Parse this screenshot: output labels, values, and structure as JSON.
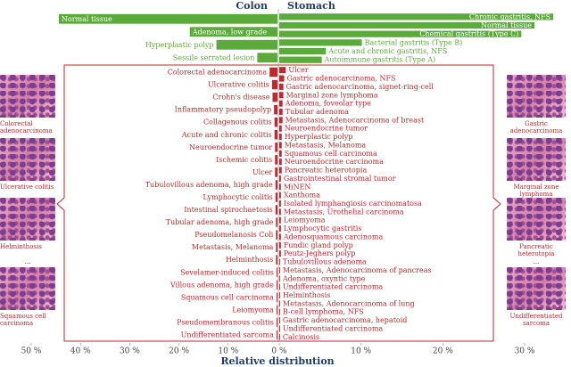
{
  "chart_data": {
    "type": "butterfly_bar",
    "xlabel": "Relative distribution",
    "sides": [
      {
        "title": "Colon",
        "xlim": [
          50,
          0
        ],
        "xticks": [
          {
            "value": 50,
            "label": "50 %"
          },
          {
            "value": 40,
            "label": "40 %"
          },
          {
            "value": 30,
            "label": "30 %"
          },
          {
            "value": 20,
            "label": "20 %"
          },
          {
            "value": 10,
            "label": "10 %"
          }
        ],
        "groups": [
          {
            "color": "#5bab3b",
            "categories": [
              "Normal tissue",
              "Adenoma, low grade",
              "Hyperplastic polyp",
              "Sessile serrated lesion"
            ],
            "values": [
              44.4,
              17.8,
              12.4,
              4.1
            ]
          },
          {
            "color": "#c1272d",
            "categories": [
              "Colorectal adenocarcinoma",
              "Ulcerative colitis",
              "Crohn's disease",
              "Inflammatory pseudopolyp",
              "Collagenous colitis",
              "Acute and chronic colitis",
              "Neuroendocrine tumor",
              "Ischemic colitis",
              "Ulcer",
              "Tubulovillous adenoma, high grade",
              "Lymphocytic colitis",
              "Intestinal spirochaetosis",
              "Tubular adenoma, high grade",
              "Pseudomelanosis Coli",
              "Metastasis, Melanoma",
              "Helminthosis",
              "Sevelamer-induced colitis",
              "Villous adenoma, high grade",
              "Squamous cell carcinoma",
              "Leiomyoma",
              "Pseudomembranous colitis",
              "Undifferentiated sarcoma"
            ],
            "values": [
              1.6,
              1.1,
              1.0,
              0.7,
              0.6,
              0.6,
              0.5,
              0.5,
              0.5,
              0.4,
              0.4,
              0.4,
              0.3,
              0.3,
              0.3,
              0.3,
              0.2,
              0.2,
              0.2,
              0.2,
              0.2,
              0.2
            ]
          }
        ]
      },
      {
        "title": "Stomach",
        "xlim": [
          0,
          30
        ],
        "xticks": [
          {
            "value": 0,
            "label": "0 %"
          },
          {
            "value": 10,
            "label": "10 %"
          },
          {
            "value": 20,
            "label": "20 %"
          },
          {
            "value": 30,
            "label": "30 %"
          }
        ],
        "groups": [
          {
            "color": "#5bab3b",
            "categories": [
              "Chronic gastritis, NFS",
              "Normal tissue",
              "Chemical gastritis (Type C)",
              "Bacterial gastritis (Type B)",
              "Acute and chronic gastritis, NFS",
              "Autoimmune gastritis (Type A)"
            ],
            "values": [
              33.5,
              31.2,
              29.6,
              10.1,
              5.7,
              5.2
            ]
          },
          {
            "color": "#c1272d",
            "categories": [
              "Ulcer",
              "Gastric adenocarcinoma, NFS",
              "Gastric adenocarcinoma, signet-ring-cell",
              "Marginal zone lymphoma",
              "Adenoma, foveolar type",
              "Tubular adenoma",
              "Metastasis, Adenocarcinoma of breast",
              "Neuroendocrine tumor",
              "Hyperplastic polyp",
              "Metastasis, Melanoma",
              "Squamous cell carcinoma",
              "Neuroendocrine carcinoma",
              "Pancreatic heterotopia",
              "Gastrointestinal stromal tumor",
              "MiNEN",
              "Xanthoma",
              "Isolated lymphangiosis carcinomatosa",
              "Metastasis, Urothelial carcinoma",
              "Leiomyoma",
              "Lymphocytic gastritis",
              "Adenosquamous carcinoma",
              "Fundic gland polyp",
              "Peutz-Jeghers polyp",
              "Tubulovillous adenoma",
              "Metastasis, Adenocarcinoma of pancreas",
              "Adenoma, oxyntic type",
              "Undifferentiated carcinoma",
              "Helminthosis",
              "Metastasis, Adenocarcinoma of lung",
              "B-cell lymphoma, NFS",
              "Gastric adenocarcinoma, hepatoid",
              "Undifferentiated carcinoma",
              "Calcinosis"
            ],
            "values": [
              0.8,
              0.6,
              0.5,
              0.5,
              0.4,
              0.4,
              0.4,
              0.3,
              0.3,
              0.3,
              0.3,
              0.3,
              0.3,
              0.2,
              0.2,
              0.2,
              0.2,
              0.2,
              0.2,
              0.2,
              0.2,
              0.2,
              0.2,
              0.1,
              0.1,
              0.1,
              0.1,
              0.1,
              0.1,
              0.1,
              0.1,
              0.1,
              0.1
            ]
          }
        ]
      }
    ]
  },
  "side_images": {
    "left": [
      "Colorectal adenocarcinoma",
      "Ulcerative colitis",
      "Helminthosis",
      "...",
      "Squamous cell carcinoma"
    ],
    "right": [
      "Gastric adenocarcinoma",
      "Marginal zone lymphoma",
      "Pancreatic heterotopia",
      "...",
      "Undifferentiated sarcoma"
    ]
  }
}
